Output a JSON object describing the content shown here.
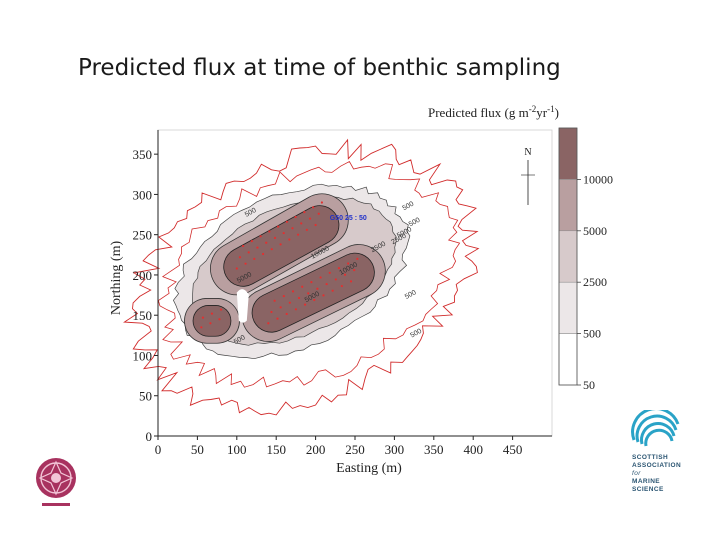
{
  "slide": {
    "title": "Predicted flux at time of benthic sampling"
  },
  "chart_data": {
    "type": "contour",
    "xlabel": "Easting (m)",
    "ylabel": "Northing (m)",
    "xlim": [
      0,
      500
    ],
    "ylim": [
      0,
      380
    ],
    "x_ticks": [
      0,
      50,
      100,
      150,
      200,
      250,
      300,
      350,
      400,
      450
    ],
    "y_ticks": [
      0,
      50,
      100,
      150,
      200,
      250,
      300,
      350
    ],
    "legend": {
      "title": "Predicted flux (g m-2 yr-1)",
      "title_base": "Predicted flux (g m",
      "title_sup1": "-2",
      "title_mid": "yr",
      "title_sup2": "-1",
      "title_end": ")",
      "levels": [
        10000,
        5000,
        2500,
        500,
        50
      ],
      "labels": [
        "10000",
        "5000",
        "2500",
        "500",
        "50"
      ],
      "colors": [
        "#8a6464",
        "#b99fa0",
        "#d7cacb",
        "#ece7e8",
        "#ffffff"
      ],
      "top_color": "#8a6464"
    },
    "north_arrow_label": "N",
    "site_label": "G50 25 : 50",
    "contour_labels": [
      "500",
      "500",
      "500",
      "2500",
      "2500",
      "5000",
      "5000",
      "5000",
      "10000",
      "10000",
      "500",
      "500",
      "500"
    ],
    "cages": [
      {
        "name": "upper-block",
        "x": [
          105,
          240
        ],
        "y": [
          192,
          282
        ]
      },
      {
        "name": "lower-right-block",
        "x": [
          125,
          290
        ],
        "y": [
          125,
          222
        ]
      },
      {
        "name": "small-left-block",
        "x": [
          52,
          95
        ],
        "y": [
          125,
          160
        ]
      }
    ]
  },
  "logos": {
    "left": "SAMS seal",
    "right": {
      "line1": "SCOTTISH",
      "line2": "ASSOCIATION",
      "line3": "for",
      "line4": "MARINE",
      "line5": "SCIENCE"
    }
  }
}
